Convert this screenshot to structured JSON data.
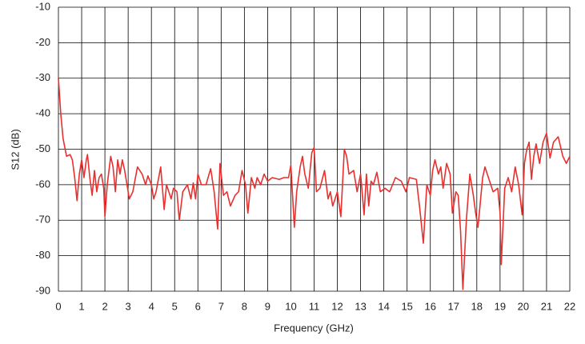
{
  "chart_data": {
    "type": "line",
    "x_label": "Frequency (GHz)",
    "y_label": "S12 (dB)",
    "xlim": [
      0,
      22
    ],
    "xticks": [
      0,
      1,
      2,
      3,
      4,
      5,
      6,
      7,
      8,
      9,
      10,
      11,
      12,
      13,
      14,
      15,
      16,
      17,
      18,
      19,
      20,
      21,
      22
    ],
    "ylim": [
      -90,
      -10
    ],
    "yticks": [
      -90,
      -80,
      -70,
      -60,
      -50,
      -40,
      -30,
      -20,
      -10
    ],
    "grid": true,
    "series": [
      {
        "name": "S12",
        "color": "#e8302f",
        "x": [
          0,
          0.1,
          0.2,
          0.35,
          0.5,
          0.6,
          0.7,
          0.8,
          0.9,
          1.0,
          1.1,
          1.2,
          1.25,
          1.35,
          1.45,
          1.55,
          1.65,
          1.75,
          1.85,
          1.95,
          2.0,
          2.1,
          2.25,
          2.35,
          2.45,
          2.55,
          2.65,
          2.75,
          2.85,
          2.95,
          3.05,
          3.2,
          3.4,
          3.6,
          3.75,
          3.85,
          4.0,
          4.1,
          4.2,
          4.4,
          4.55,
          4.65,
          4.75,
          4.85,
          4.95,
          5.1,
          5.2,
          5.35,
          5.55,
          5.7,
          5.8,
          5.9,
          6.0,
          6.15,
          6.35,
          6.55,
          6.7,
          6.85,
          6.95,
          7.1,
          7.25,
          7.4,
          7.6,
          7.75,
          7.9,
          8.05,
          8.15,
          8.3,
          8.45,
          8.55,
          8.7,
          8.85,
          9.0,
          9.2,
          9.5,
          9.7,
          9.9,
          10.0,
          10.15,
          10.25,
          10.4,
          10.5,
          10.6,
          10.75,
          10.9,
          11.0,
          11.1,
          11.25,
          11.45,
          11.6,
          11.7,
          11.8,
          12.0,
          12.15,
          12.3,
          12.4,
          12.5,
          12.7,
          12.85,
          13.0,
          13.15,
          13.25,
          13.35,
          13.45,
          13.55,
          13.7,
          13.85,
          14.05,
          14.25,
          14.5,
          14.75,
          14.95,
          15.1,
          15.4,
          15.55,
          15.7,
          15.85,
          16.0,
          16.1,
          16.2,
          16.35,
          16.45,
          16.55,
          16.7,
          16.85,
          16.95,
          17.1,
          17.2,
          17.3,
          17.4,
          17.55,
          17.7,
          17.85,
          17.95,
          18.05,
          18.25,
          18.35,
          18.5,
          18.7,
          18.9,
          19.0,
          19.05,
          19.2,
          19.35,
          19.5,
          19.65,
          19.8,
          19.95,
          20.05,
          20.15,
          20.25,
          20.35,
          20.45,
          20.55,
          20.7,
          20.85,
          21.0,
          21.15,
          21.3,
          21.5,
          21.7,
          21.85,
          22.0
        ],
        "values": [
          -30,
          -40,
          -47,
          -52,
          -51.5,
          -53,
          -58,
          -64.5,
          -57,
          -53,
          -58,
          -53,
          -51.5,
          -58,
          -63,
          -56,
          -62,
          -58,
          -57,
          -61,
          -69,
          -60,
          -52,
          -55,
          -62,
          -53,
          -57,
          -53,
          -56,
          -60,
          -64,
          -62,
          -55,
          -57,
          -60,
          -57.5,
          -60,
          -64,
          -62,
          -55,
          -67,
          -60,
          -62,
          -64,
          -61,
          -62,
          -70,
          -62,
          -60,
          -64,
          -59.5,
          -64,
          -57,
          -60,
          -60,
          -55.5,
          -62,
          -72.5,
          -54,
          -63,
          -62,
          -66,
          -63,
          -62,
          -56,
          -60,
          -68,
          -58,
          -61,
          -58,
          -60,
          -57,
          -59,
          -58,
          -58.5,
          -58,
          -58,
          -54.5,
          -72,
          -62,
          -55,
          -52,
          -57,
          -61,
          -51,
          -49.5,
          -62,
          -61,
          -56,
          -64,
          -62,
          -66,
          -62,
          -69,
          -50,
          -52,
          -57,
          -56,
          -62,
          -57,
          -68.5,
          -57,
          -66,
          -59,
          -60,
          -56.5,
          -62,
          -61,
          -62,
          -58,
          -59,
          -62,
          -58,
          -58.5,
          -67,
          -76.5,
          -60,
          -63,
          -56,
          -53,
          -57,
          -55,
          -61,
          -54,
          -57,
          -68,
          -62,
          -63,
          -73,
          -89.5,
          -70,
          -57,
          -63,
          -68,
          -72,
          -58,
          -55,
          -58,
          -62,
          -61,
          -68,
          -82.5,
          -61,
          -58,
          -62,
          -55,
          -60,
          -68.5,
          -54,
          -50,
          -48,
          -58.5,
          -52,
          -48.5,
          -54,
          -48,
          -45.5,
          -52.5,
          -48,
          -46.5,
          -52,
          -54,
          -52
        ]
      }
    ]
  }
}
